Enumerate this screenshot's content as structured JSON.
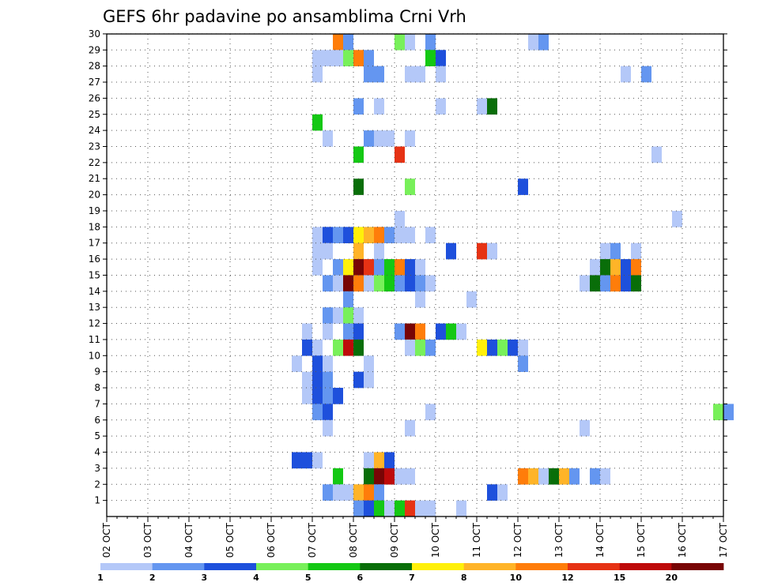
{
  "chart_data": {
    "type": "heatmap",
    "title": "GEFS 6hr padavine po ansamblima Crni Vrh",
    "x_tick_labels": [
      "02 OCT",
      "03 OCT",
      "04 OCT",
      "05 OCT",
      "06 OCT",
      "07 OCT",
      "08 OCT",
      "09 OCT",
      "10 OCT",
      "11 OCT",
      "12 OCT",
      "13 OCT",
      "14 OCT",
      "15 OCT",
      "16 OCT",
      "17 OCT"
    ],
    "y_tick_labels": [
      "1",
      "2",
      "3",
      "4",
      "5",
      "6",
      "7",
      "8",
      "9",
      "10",
      "11",
      "12",
      "13",
      "14",
      "15",
      "16",
      "17",
      "18",
      "19",
      "20",
      "21",
      "22",
      "23",
      "24",
      "25",
      "26",
      "27",
      "28",
      "29",
      "30"
    ],
    "ylim": [
      0,
      30
    ],
    "grid": true,
    "colorbar": {
      "placement": "bottom",
      "colors": [
        "#b4c8f8",
        "#6496f0",
        "#1e50dc",
        "#78f05a",
        "#14c814",
        "#096e09",
        "#fff00a",
        "#ffb428",
        "#ff7d0a",
        "#e63214",
        "#be0a0a",
        "#780505"
      ],
      "tick_labels": [
        "1",
        "2",
        "3",
        "4",
        "5",
        "6",
        "7",
        "8",
        "10",
        "12",
        "15",
        "20"
      ]
    },
    "cells_note": "c = [6hr step index since 02 OCT 00Z, member row 0..30, color class 1..12]",
    "cells": [
      [
        22,
        29,
        9
      ],
      [
        23,
        29,
        2
      ],
      [
        28,
        29,
        4
      ],
      [
        29,
        29,
        1
      ],
      [
        31,
        29,
        2
      ],
      [
        41,
        29,
        1
      ],
      [
        42,
        29,
        2
      ],
      [
        20,
        28,
        1
      ],
      [
        21,
        28,
        1
      ],
      [
        22,
        28,
        1
      ],
      [
        23,
        28,
        4
      ],
      [
        24,
        28,
        9
      ],
      [
        25,
        28,
        2
      ],
      [
        31,
        28,
        5
      ],
      [
        32,
        28,
        3
      ],
      [
        20,
        27,
        1
      ],
      [
        25,
        27,
        2
      ],
      [
        26,
        27,
        2
      ],
      [
        29,
        27,
        1
      ],
      [
        30,
        27,
        1
      ],
      [
        32,
        27,
        1
      ],
      [
        50,
        27,
        1
      ],
      [
        52,
        27,
        2
      ],
      [
        24,
        25,
        2
      ],
      [
        26,
        25,
        1
      ],
      [
        32,
        25,
        1
      ],
      [
        36,
        25,
        1
      ],
      [
        37,
        25,
        6
      ],
      [
        20,
        24,
        5
      ],
      [
        21,
        23,
        1
      ],
      [
        25,
        23,
        2
      ],
      [
        26,
        23,
        1
      ],
      [
        27,
        23,
        1
      ],
      [
        29,
        23,
        1
      ],
      [
        24,
        22,
        5
      ],
      [
        28,
        22,
        10
      ],
      [
        53,
        22,
        1
      ],
      [
        24,
        20,
        6
      ],
      [
        29,
        20,
        4
      ],
      [
        40,
        20,
        3
      ],
      [
        28,
        18,
        1
      ],
      [
        55,
        18,
        1
      ],
      [
        20,
        17,
        1
      ],
      [
        21,
        17,
        3
      ],
      [
        22,
        17,
        2
      ],
      [
        23,
        17,
        3
      ],
      [
        24,
        17,
        7
      ],
      [
        25,
        17,
        8
      ],
      [
        26,
        17,
        9
      ],
      [
        27,
        17,
        2
      ],
      [
        28,
        17,
        1
      ],
      [
        29,
        17,
        1
      ],
      [
        31,
        17,
        1
      ],
      [
        20,
        16,
        1
      ],
      [
        21,
        16,
        1
      ],
      [
        24,
        16,
        8
      ],
      [
        26,
        16,
        1
      ],
      [
        33,
        16,
        3
      ],
      [
        36,
        16,
        10
      ],
      [
        37,
        16,
        1
      ],
      [
        48,
        16,
        1
      ],
      [
        49,
        16,
        2
      ],
      [
        51,
        16,
        1
      ],
      [
        20,
        15,
        1
      ],
      [
        22,
        15,
        2
      ],
      [
        23,
        15,
        7
      ],
      [
        24,
        15,
        12
      ],
      [
        25,
        15,
        10
      ],
      [
        26,
        15,
        2
      ],
      [
        27,
        15,
        5
      ],
      [
        28,
        15,
        9
      ],
      [
        29,
        15,
        3
      ],
      [
        30,
        15,
        1
      ],
      [
        47,
        15,
        1
      ],
      [
        48,
        15,
        6
      ],
      [
        49,
        15,
        8
      ],
      [
        50,
        15,
        3
      ],
      [
        51,
        15,
        9
      ],
      [
        21,
        14,
        2
      ],
      [
        22,
        14,
        1
      ],
      [
        23,
        14,
        12
      ],
      [
        24,
        14,
        9
      ],
      [
        25,
        14,
        1
      ],
      [
        26,
        14,
        4
      ],
      [
        27,
        14,
        5
      ],
      [
        28,
        14,
        2
      ],
      [
        29,
        14,
        3
      ],
      [
        30,
        14,
        2
      ],
      [
        31,
        14,
        1
      ],
      [
        46,
        14,
        1
      ],
      [
        47,
        14,
        6
      ],
      [
        48,
        14,
        2
      ],
      [
        49,
        14,
        9
      ],
      [
        50,
        14,
        3
      ],
      [
        51,
        14,
        6
      ],
      [
        23,
        13,
        2
      ],
      [
        30,
        13,
        1
      ],
      [
        35,
        13,
        1
      ],
      [
        21,
        12,
        2
      ],
      [
        22,
        12,
        1
      ],
      [
        23,
        12,
        4
      ],
      [
        24,
        12,
        1
      ],
      [
        19,
        11,
        1
      ],
      [
        21,
        11,
        1
      ],
      [
        23,
        11,
        2
      ],
      [
        24,
        11,
        3
      ],
      [
        28,
        11,
        2
      ],
      [
        29,
        11,
        12
      ],
      [
        30,
        11,
        9
      ],
      [
        32,
        11,
        3
      ],
      [
        33,
        11,
        5
      ],
      [
        34,
        11,
        1
      ],
      [
        19,
        10,
        3
      ],
      [
        20,
        10,
        1
      ],
      [
        22,
        10,
        4
      ],
      [
        23,
        10,
        11
      ],
      [
        24,
        10,
        6
      ],
      [
        29,
        10,
        1
      ],
      [
        30,
        10,
        4
      ],
      [
        31,
        10,
        2
      ],
      [
        36,
        10,
        7
      ],
      [
        37,
        10,
        3
      ],
      [
        38,
        10,
        4
      ],
      [
        39,
        10,
        3
      ],
      [
        40,
        10,
        1
      ],
      [
        18,
        9,
        1
      ],
      [
        20,
        9,
        3
      ],
      [
        21,
        9,
        1
      ],
      [
        25,
        9,
        1
      ],
      [
        40,
        9,
        2
      ],
      [
        19,
        8,
        1
      ],
      [
        20,
        8,
        3
      ],
      [
        21,
        8,
        2
      ],
      [
        24,
        8,
        3
      ],
      [
        25,
        8,
        1
      ],
      [
        19,
        7,
        1
      ],
      [
        20,
        7,
        3
      ],
      [
        21,
        7,
        2
      ],
      [
        22,
        7,
        3
      ],
      [
        20,
        6,
        2
      ],
      [
        21,
        6,
        3
      ],
      [
        31,
        6,
        1
      ],
      [
        59,
        6,
        4
      ],
      [
        60,
        6,
        2
      ],
      [
        21,
        5,
        1
      ],
      [
        29,
        5,
        1
      ],
      [
        46,
        5,
        1
      ],
      [
        18,
        3,
        3
      ],
      [
        19,
        3,
        3
      ],
      [
        20,
        3,
        1
      ],
      [
        25,
        3,
        1
      ],
      [
        26,
        3,
        8
      ],
      [
        27,
        3,
        3
      ],
      [
        22,
        2,
        5
      ],
      [
        25,
        2,
        6
      ],
      [
        26,
        2,
        12
      ],
      [
        27,
        2,
        11
      ],
      [
        28,
        2,
        1
      ],
      [
        29,
        2,
        1
      ],
      [
        40,
        2,
        9
      ],
      [
        41,
        2,
        8
      ],
      [
        42,
        2,
        1
      ],
      [
        43,
        2,
        6
      ],
      [
        44,
        2,
        8
      ],
      [
        45,
        2,
        2
      ],
      [
        47,
        2,
        2
      ],
      [
        48,
        2,
        1
      ],
      [
        21,
        1,
        2
      ],
      [
        22,
        1,
        1
      ],
      [
        23,
        1,
        1
      ],
      [
        24,
        1,
        8
      ],
      [
        25,
        1,
        9
      ],
      [
        26,
        1,
        2
      ],
      [
        37,
        1,
        3
      ],
      [
        38,
        1,
        1
      ],
      [
        24,
        0,
        2
      ],
      [
        25,
        0,
        3
      ],
      [
        26,
        0,
        5
      ],
      [
        27,
        0,
        1
      ],
      [
        28,
        0,
        5
      ],
      [
        29,
        0,
        10
      ],
      [
        30,
        0,
        1
      ],
      [
        31,
        0,
        1
      ],
      [
        34,
        0,
        1
      ]
    ]
  }
}
